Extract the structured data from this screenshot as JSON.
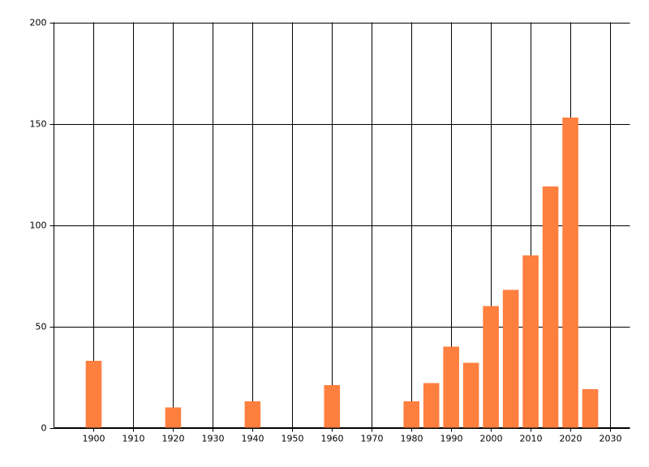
{
  "chart_data": {
    "type": "bar",
    "x": [
      1900,
      1920,
      1940,
      1960,
      1980,
      1985,
      1990,
      1995,
      2000,
      2005,
      2010,
      2015,
      2020,
      2025
    ],
    "values": [
      33,
      10,
      13,
      21,
      13,
      22,
      40,
      32,
      60,
      68,
      85,
      119,
      153,
      19
    ],
    "color": "#ff7f3f",
    "xlim": [
      1890,
      2035
    ],
    "xticks": [
      1900,
      1910,
      1920,
      1930,
      1940,
      1950,
      1960,
      1970,
      1980,
      1990,
      2000,
      2010,
      2020,
      2030
    ],
    "ylim": [
      0,
      200
    ],
    "yticks": [
      0,
      50,
      100,
      150,
      200
    ],
    "grid": true
  }
}
